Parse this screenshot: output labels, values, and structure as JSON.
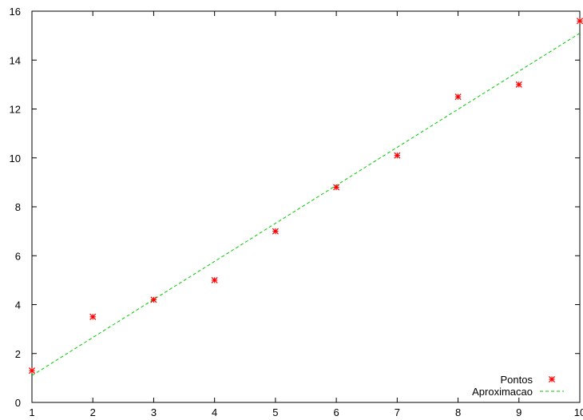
{
  "chart_data": {
    "type": "scatter",
    "title": "",
    "xlabel": "",
    "ylabel": "",
    "xlim": [
      1,
      10
    ],
    "ylim": [
      0,
      16
    ],
    "x_ticks": [
      "1",
      "2",
      "3",
      "4",
      "5",
      "6",
      "7",
      "8",
      "9",
      "10"
    ],
    "y_ticks": [
      "0",
      "2",
      "4",
      "6",
      "8",
      "10",
      "12",
      "14",
      "16"
    ],
    "grid": false,
    "legend_position": "bottom-right",
    "series": [
      {
        "name": "Pontos",
        "type": "scatter",
        "marker": "asterisk",
        "color": "#ff0000",
        "x": [
          1,
          2,
          3,
          4,
          5,
          6,
          7,
          8,
          9,
          10
        ],
        "y": [
          1.3,
          3.5,
          4.2,
          5.0,
          7.0,
          8.8,
          10.1,
          12.5,
          13.0,
          15.6
        ]
      },
      {
        "name": "Aproximacao",
        "type": "line",
        "style": "dashed",
        "color": "#00cc00",
        "x": [
          1,
          10
        ],
        "y": [
          1.1,
          15.1
        ]
      }
    ]
  }
}
